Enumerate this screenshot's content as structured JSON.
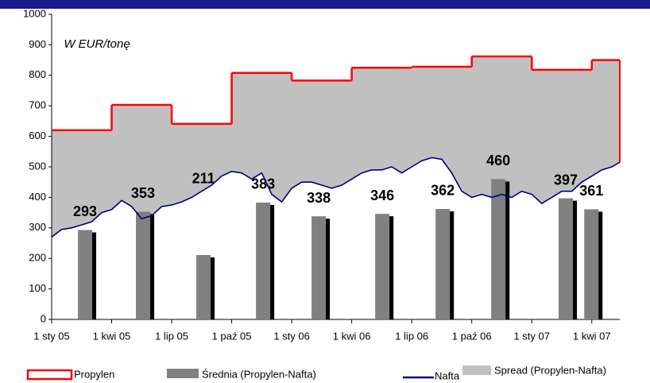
{
  "chart_data": {
    "type": "combo",
    "annotation": "W EUR/tonę",
    "xlim": [
      0,
      28.4
    ],
    "xticks": [
      {
        "value": 0,
        "label": "1 sty 05"
      },
      {
        "value": 3,
        "label": "1 kwi 05"
      },
      {
        "value": 6,
        "label": "1 lip 05"
      },
      {
        "value": 9,
        "label": "1 paź 05"
      },
      {
        "value": 12,
        "label": "1 sty 06"
      },
      {
        "value": 15,
        "label": "1 kwi 06"
      },
      {
        "value": 18,
        "label": "1 lip 06"
      },
      {
        "value": 21,
        "label": "1 paź 06"
      },
      {
        "value": 24,
        "label": "1 sty 07"
      },
      {
        "value": 27,
        "label": "1 kwi 07"
      }
    ],
    "ylim": [
      0,
      1000
    ],
    "yticks": [
      0,
      100,
      200,
      300,
      400,
      500,
      600,
      700,
      800,
      900,
      1000
    ],
    "series": [
      {
        "name": "Propylen",
        "color": "#ff0000",
        "kind": "step",
        "x": [
          0,
          3,
          6,
          9,
          12,
          15,
          18,
          21,
          24,
          27
        ],
        "values": [
          620,
          703,
          641,
          808,
          783,
          825,
          828,
          862,
          818,
          850
        ]
      },
      {
        "name": "Średnia (Propylen-Nafta)",
        "color": "#808080",
        "kind": "bar",
        "x": [
          1.67,
          4.57,
          7.59,
          10.57,
          13.35,
          16.53,
          19.55,
          22.33,
          25.7,
          26.98
        ],
        "values": [
          293,
          353,
          211,
          383,
          338,
          346,
          362,
          460,
          397,
          361
        ]
      },
      {
        "name": "Nafta",
        "color": "#000080",
        "kind": "line",
        "x": [
          0,
          0.5,
          1,
          1.5,
          2,
          2.5,
          3,
          3.5,
          4,
          4.5,
          5,
          5.5,
          6,
          6.5,
          7,
          7.5,
          8,
          8.5,
          9,
          9.5,
          10,
          10.5,
          11,
          11.5,
          12,
          12.5,
          13,
          13.5,
          14,
          14.5,
          15,
          15.5,
          16,
          16.5,
          17,
          17.5,
          18,
          18.5,
          19,
          19.5,
          20,
          20.5,
          21,
          21.5,
          22,
          22.5,
          23,
          23.5,
          24,
          24.5,
          25,
          25.5,
          26,
          26.5,
          27,
          27.5,
          28,
          28.4
        ],
        "values": [
          270,
          295,
          300,
          310,
          320,
          350,
          360,
          390,
          370,
          330,
          340,
          370,
          375,
          385,
          400,
          420,
          440,
          470,
          485,
          480,
          460,
          480,
          410,
          385,
          430,
          450,
          450,
          440,
          430,
          440,
          460,
          480,
          490,
          490,
          500,
          480,
          500,
          520,
          530,
          525,
          480,
          420,
          400,
          410,
          400,
          410,
          400,
          420,
          410,
          380,
          400,
          420,
          420,
          450,
          470,
          490,
          500,
          515
        ]
      },
      {
        "name": "Spread (Propylen-Nafta)",
        "color": "#c0c0c0",
        "kind": "spread"
      }
    ]
  }
}
